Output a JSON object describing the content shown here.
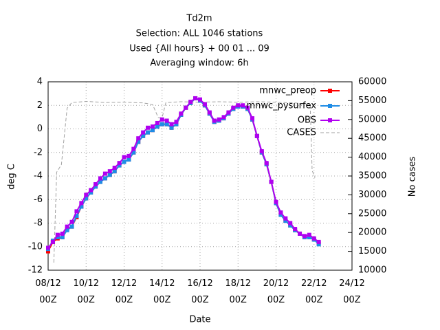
{
  "chart_data": {
    "type": "line",
    "title": "Td2m",
    "subtitle": [
      "Selection: ALL    1046 stations",
      "Used {All hours} + 00 01 ... 09",
      "Averaging window:  6h"
    ],
    "x_label": "Date",
    "y_label": "deg C",
    "y2_label": "No cases",
    "x": [
      8.0,
      8.25,
      8.5,
      8.75,
      9.0,
      9.25,
      9.5,
      9.75,
      10.0,
      10.25,
      10.5,
      10.75,
      11.0,
      11.25,
      11.5,
      11.75,
      12.0,
      12.25,
      12.5,
      12.75,
      13.0,
      13.25,
      13.5,
      13.75,
      14.0,
      14.25,
      14.5,
      14.75,
      15.0,
      15.25,
      15.5,
      15.75,
      16.0,
      16.25,
      16.5,
      16.75,
      17.0,
      17.25,
      17.5,
      17.75,
      18.0,
      18.25,
      18.5,
      18.75,
      19.0,
      19.25,
      19.5,
      19.75,
      20.0,
      20.25,
      20.5,
      20.75,
      21.0,
      21.25,
      21.5,
      21.75,
      22.0,
      22.25
    ],
    "xlim": [
      8,
      24
    ],
    "xticks": [
      {
        "value": 8,
        "label": "08/12\n00Z"
      },
      {
        "value": 10,
        "label": "10/12\n00Z"
      },
      {
        "value": 12,
        "label": "12/12\n00Z"
      },
      {
        "value": 14,
        "label": "14/12\n00Z"
      },
      {
        "value": 16,
        "label": "16/12\n00Z"
      },
      {
        "value": 18,
        "label": "18/12\n00Z"
      },
      {
        "value": 20,
        "label": "20/12\n00Z"
      },
      {
        "value": 22,
        "label": "22/12\n00Z"
      },
      {
        "value": 24,
        "label": "24/12\n00Z"
      }
    ],
    "ylim": [
      -12,
      4
    ],
    "yticks": [
      -12,
      -10,
      -8,
      -6,
      -4,
      -2,
      0,
      2,
      4
    ],
    "y2lim": [
      10000,
      60000
    ],
    "y2ticks": [
      10000,
      15000,
      20000,
      25000,
      30000,
      35000,
      40000,
      45000,
      50000,
      55000,
      60000
    ],
    "grid": true,
    "legend": "top-right",
    "series": [
      {
        "name": "CASES",
        "color": "#a0a0a0",
        "dashed": true,
        "axis": "y2",
        "x": [
          8.3,
          8.45,
          8.7,
          9.0,
          9.25,
          10.0,
          11.0,
          12.0,
          13.0,
          13.5,
          13.8,
          14.0,
          14.2,
          15.0,
          16.0,
          17.0,
          18.0,
          19.0,
          20.0,
          21.0,
          21.8,
          21.9,
          22.05
        ],
        "values": [
          12000,
          36000,
          38000,
          53000,
          54500,
          54800,
          54500,
          54600,
          54400,
          54000,
          50500,
          50500,
          54500,
          54700,
          54600,
          54700,
          54600,
          54700,
          54600,
          54400,
          54000,
          36500,
          34500
        ]
      },
      {
        "name": "mnwc_preop",
        "color": "#ff0000",
        "values": [
          -10.4,
          -9.6,
          -9.3,
          -9.2,
          -8.5,
          -8.3,
          -7.5,
          -6.6,
          -5.9,
          -5.4,
          -4.9,
          -4.5,
          -4.2,
          -3.9,
          -3.6,
          -3.1,
          -2.8,
          -2.6,
          -2.0,
          -1.1,
          -0.6,
          -0.3,
          -0.1,
          0.2,
          0.4,
          0.4,
          0.1,
          0.4,
          1.2,
          1.8,
          2.2,
          2.6,
          2.4,
          2.0,
          1.3,
          0.6,
          0.7,
          0.9,
          1.3,
          1.7,
          1.9,
          1.9,
          1.7,
          0.8,
          -0.6,
          -2.0,
          -3.0,
          -4.5,
          -6.3,
          -7.3,
          -7.8,
          -8.2,
          -8.6,
          -8.9,
          -9.2,
          -9.2,
          -9.4,
          -9.7
        ]
      },
      {
        "name": "mnwc_pysurfex",
        "color": "#1e8ce6",
        "values": [
          -10.2,
          -9.5,
          -9.2,
          -9.2,
          -8.6,
          -8.3,
          -7.4,
          -6.6,
          -5.9,
          -5.4,
          -4.9,
          -4.5,
          -4.2,
          -3.9,
          -3.6,
          -3.1,
          -2.8,
          -2.6,
          -2.0,
          -1.1,
          -0.6,
          -0.3,
          -0.1,
          0.2,
          0.4,
          0.4,
          0.1,
          0.4,
          1.2,
          1.8,
          2.2,
          2.6,
          2.4,
          2.0,
          1.3,
          0.6,
          0.7,
          0.9,
          1.3,
          1.7,
          1.9,
          1.9,
          1.7,
          0.8,
          -0.6,
          -2.0,
          -3.0,
          -4.5,
          -6.3,
          -7.3,
          -7.8,
          -8.2,
          -8.6,
          -8.9,
          -9.2,
          -9.2,
          -9.4,
          -9.8
        ]
      },
      {
        "name": "OBS",
        "color": "#b000f0",
        "values": [
          -10.1,
          -9.6,
          -9.0,
          -8.9,
          -8.3,
          -7.9,
          -7.0,
          -6.3,
          -5.6,
          -5.2,
          -4.7,
          -4.2,
          -3.8,
          -3.6,
          -3.3,
          -2.9,
          -2.4,
          -2.3,
          -1.7,
          -0.8,
          -0.3,
          0.1,
          0.2,
          0.5,
          0.8,
          0.7,
          0.4,
          0.6,
          1.3,
          1.8,
          2.3,
          2.6,
          2.5,
          2.1,
          1.4,
          0.7,
          0.8,
          1.0,
          1.4,
          1.8,
          2.0,
          2.0,
          1.8,
          0.9,
          -0.6,
          -1.9,
          -2.9,
          -4.5,
          -6.2,
          -7.1,
          -7.6,
          -8.0,
          -8.5,
          -8.9,
          -9.1,
          -9.0,
          -9.3,
          -9.6
        ]
      }
    ]
  }
}
